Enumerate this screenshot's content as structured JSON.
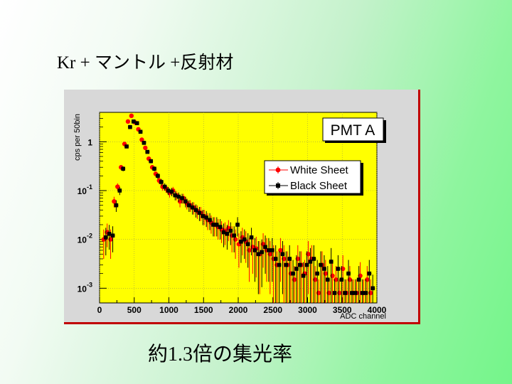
{
  "slide": {
    "title": "Kr + マントル +反射材",
    "caption": "約1.3倍の集光率"
  },
  "colors": {
    "plot_background": "#ffff00",
    "frame_background": "#d8d8d8",
    "frame_border": "#c00000",
    "white_series": "#ff0000",
    "black_series": "#000000"
  },
  "chart_data": {
    "type": "scatter",
    "title": "PMT A",
    "xlabel": "ADC channel",
    "ylabel": "cps per 50bin",
    "xlim": [
      0,
      4000
    ],
    "ylim": [
      0.0005,
      4
    ],
    "yscale": "log",
    "x_ticks": [
      "0",
      "500",
      "1000",
      "1500",
      "2000",
      "2500",
      "3000",
      "3500",
      "4000"
    ],
    "y_ticks": [
      {
        "base": "1",
        "exp": ""
      },
      {
        "base": "10",
        "exp": "-1"
      },
      {
        "base": "10",
        "exp": "-2"
      },
      {
        "base": "10",
        "exp": "-3"
      }
    ],
    "legend": "top-right",
    "series": [
      {
        "name": "White Sheet",
        "color": "#ff0000",
        "x": [
          75,
          125,
          175,
          225,
          275,
          325,
          375,
          425,
          475,
          525,
          575,
          625,
          675,
          725,
          775,
          825,
          875,
          925,
          975,
          1025,
          1075,
          1125,
          1175,
          1225,
          1275,
          1325,
          1375,
          1425,
          1475,
          1525,
          1575,
          1625,
          1675,
          1725,
          1775,
          1825,
          1875,
          1925,
          1975,
          2025,
          2075,
          2125,
          2175,
          2225,
          2275,
          2325,
          2375,
          2425,
          2475,
          2525,
          2575,
          2625,
          2675,
          2725,
          2775,
          2825,
          2875,
          2925,
          2975,
          3025,
          3075,
          3125,
          3175,
          3225,
          3275,
          3325,
          3375,
          3425,
          3475,
          3525,
          3575,
          3625,
          3675,
          3725,
          3775,
          3825,
          3875,
          3925
        ],
        "y": [
          0.01,
          0.014,
          0.01,
          0.06,
          0.12,
          0.3,
          0.9,
          2.6,
          3.4,
          2.5,
          1.8,
          1.1,
          0.75,
          0.45,
          0.3,
          0.22,
          0.16,
          0.12,
          0.11,
          0.09,
          0.1,
          0.08,
          0.06,
          0.07,
          0.055,
          0.05,
          0.045,
          0.038,
          0.035,
          0.03,
          0.025,
          0.022,
          0.02,
          0.018,
          0.016,
          0.015,
          0.017,
          0.012,
          0.01,
          0.008,
          0.011,
          0.009,
          0.006,
          0.007,
          0.0065,
          0.005,
          0.008,
          0.006,
          0.005,
          0.004,
          0.003,
          0.006,
          0.004,
          0.003,
          0.002,
          0.0015,
          0.004,
          0.003,
          0.002,
          0.005,
          0.004,
          0.0015,
          0.0008,
          0.003,
          0.002,
          0.0008,
          0.0018,
          0.0015,
          0.0008,
          0.0025,
          0.0008,
          0.0015,
          0.0008,
          0.0008,
          0.0018,
          0.0008,
          0.0015,
          0.0008
        ]
      },
      {
        "name": "Black Sheet",
        "color": "#000000",
        "x": [
          75,
          125,
          175,
          225,
          275,
          325,
          375,
          425,
          475,
          525,
          575,
          625,
          675,
          725,
          775,
          825,
          875,
          925,
          975,
          1025,
          1075,
          1125,
          1175,
          1225,
          1275,
          1325,
          1375,
          1425,
          1475,
          1525,
          1575,
          1625,
          1675,
          1725,
          1775,
          1825,
          1875,
          1925,
          1975,
          2025,
          2075,
          2125,
          2175,
          2225,
          2275,
          2325,
          2375,
          2425,
          2475,
          2525,
          2575,
          2625,
          2675,
          2725,
          2775,
          2825,
          2875,
          2925,
          2975,
          3025,
          3075,
          3125,
          3175,
          3225,
          3275,
          3325,
          3375,
          3425,
          3475,
          3525,
          3575,
          3625,
          3675,
          3725,
          3775,
          3825,
          3875,
          3925
        ],
        "y": [
          0.011,
          0.013,
          0.012,
          0.05,
          0.1,
          0.28,
          0.8,
          2.0,
          2.6,
          2.4,
          1.6,
          0.95,
          0.62,
          0.4,
          0.28,
          0.2,
          0.15,
          0.12,
          0.1,
          0.095,
          0.08,
          0.075,
          0.07,
          0.06,
          0.05,
          0.045,
          0.04,
          0.035,
          0.03,
          0.028,
          0.025,
          0.02,
          0.02,
          0.018,
          0.014,
          0.013,
          0.015,
          0.012,
          0.02,
          0.009,
          0.01,
          0.008,
          0.011,
          0.006,
          0.005,
          0.0055,
          0.007,
          0.006,
          0.006,
          0.004,
          0.003,
          0.005,
          0.003,
          0.004,
          0.002,
          0.0025,
          0.003,
          0.0018,
          0.003,
          0.0035,
          0.004,
          0.002,
          0.003,
          0.0025,
          0.0015,
          0.0035,
          0.0008,
          0.0025,
          0.0015,
          0.0008,
          0.002,
          0.0008,
          0.0008,
          0.0015,
          0.0008,
          0.0008,
          0.002,
          0.001
        ]
      }
    ]
  }
}
